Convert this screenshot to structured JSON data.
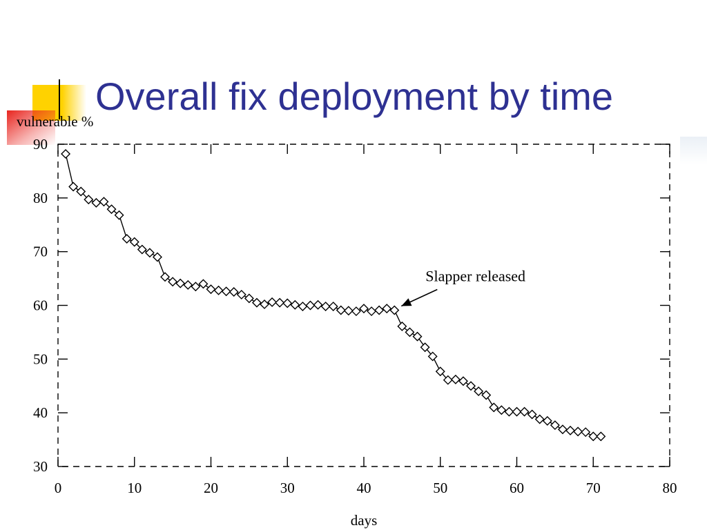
{
  "slide": {
    "title": "Overall fix deployment by time",
    "title_color": "#2e3192",
    "accent_colors": {
      "yellow": "#ffd200",
      "red": "#e8251f",
      "bar": "#000000"
    }
  },
  "chart_data": {
    "type": "line",
    "title": "",
    "ylabel": "vulnerable %",
    "xlabel": "days",
    "xlim": [
      0,
      80
    ],
    "ylim": [
      30,
      90
    ],
    "x_ticks": [
      0,
      10,
      20,
      30,
      40,
      50,
      60,
      70,
      80
    ],
    "y_ticks": [
      30,
      40,
      50,
      60,
      70,
      80,
      90
    ],
    "frame": "dashed",
    "marker": "diamond",
    "line_color": "#000000",
    "series": [
      {
        "x": [
          1,
          2,
          3,
          4,
          5,
          6,
          7,
          8,
          9,
          10,
          11,
          12,
          13,
          14,
          15,
          16,
          17,
          18,
          19,
          20,
          21,
          22,
          23,
          24,
          25,
          26,
          27,
          28,
          29,
          30,
          31,
          32,
          33,
          34,
          35,
          36,
          37,
          38,
          39,
          40,
          41,
          42,
          43,
          44,
          45,
          46,
          47,
          48,
          49,
          50,
          51,
          52,
          53,
          54,
          55,
          56,
          57,
          58,
          59,
          60,
          61,
          62,
          63,
          64,
          65,
          66,
          67,
          68,
          69,
          70,
          71
        ],
        "y": [
          88.2,
          82.1,
          81.2,
          79.7,
          79.1,
          79.3,
          77.9,
          76.8,
          72.4,
          71.8,
          70.4,
          69.8,
          69.0,
          65.3,
          64.4,
          64.1,
          63.8,
          63.5,
          64.0,
          63.0,
          62.8,
          62.6,
          62.5,
          62.0,
          61.3,
          60.5,
          60.2,
          60.6,
          60.5,
          60.4,
          60.1,
          59.8,
          60.0,
          60.1,
          59.8,
          59.8,
          59.1,
          59.0,
          58.9,
          59.4,
          58.9,
          59.1,
          59.4,
          59.1,
          56.1,
          55.0,
          54.2,
          52.2,
          50.5,
          47.7,
          46.1,
          46.2,
          45.9,
          45.0,
          44.0,
          43.3,
          41.0,
          40.5,
          40.2,
          40.2,
          40.2,
          39.7,
          38.8,
          38.5,
          37.7,
          36.9,
          36.7,
          36.5,
          36.4,
          35.6,
          35.6
        ]
      }
    ],
    "annotations": [
      {
        "text": "Slapper released",
        "x": 44,
        "y": 59.1
      }
    ]
  }
}
